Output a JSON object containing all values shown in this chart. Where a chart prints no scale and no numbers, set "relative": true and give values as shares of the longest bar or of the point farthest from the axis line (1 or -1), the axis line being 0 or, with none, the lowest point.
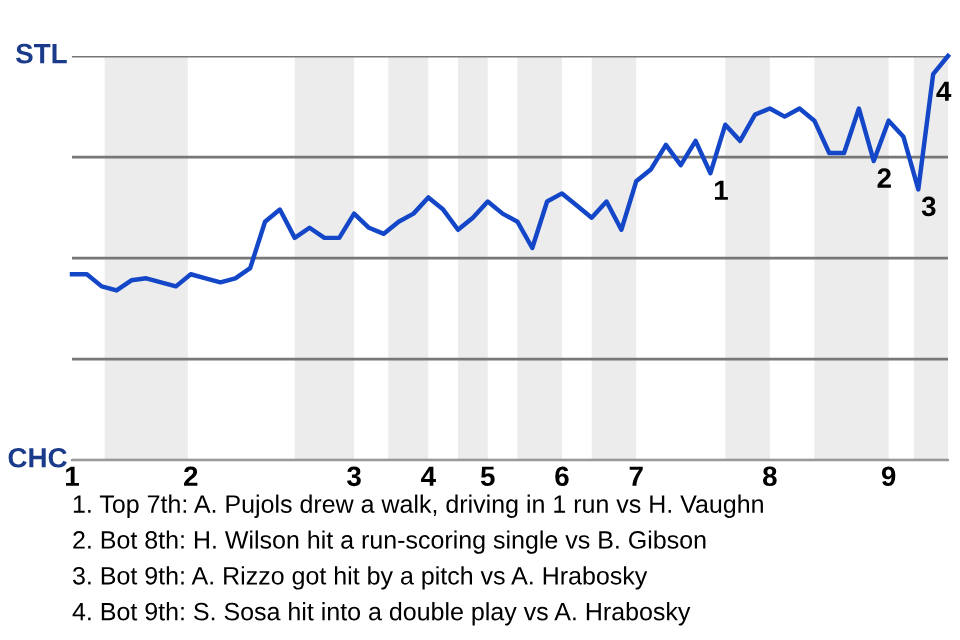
{
  "chart_data": {
    "type": "line",
    "relative": true,
    "categories": [
      "1",
      null,
      null,
      null,
      null,
      null,
      null,
      null,
      "2",
      null,
      null,
      null,
      null,
      null,
      null,
      null,
      null,
      null,
      null,
      "3",
      null,
      null,
      null,
      null,
      "4",
      null,
      null,
      null,
      "5",
      null,
      null,
      null,
      null,
      "6",
      null,
      null,
      null,
      null,
      "7",
      null,
      null,
      null,
      null,
      null,
      null,
      null,
      null,
      "8",
      null,
      null,
      null,
      null,
      null,
      null,
      null,
      "9",
      null,
      null,
      null,
      null
    ],
    "series": [
      {
        "color": "#1446c8",
        "values": [
          0.46,
          0.46,
          0.43,
          0.42,
          0.445,
          0.45,
          0.44,
          0.43,
          0.46,
          0.45,
          0.44,
          0.45,
          0.475,
          0.59,
          0.62,
          0.55,
          0.575,
          0.55,
          0.55,
          0.61,
          0.575,
          0.56,
          0.59,
          0.61,
          0.65,
          0.62,
          0.57,
          0.6,
          0.64,
          0.61,
          0.59,
          0.525,
          0.64,
          0.66,
          0.63,
          0.6,
          0.64,
          0.57,
          0.69,
          0.72,
          0.78,
          0.73,
          0.79,
          0.71,
          0.83,
          0.79,
          0.855,
          0.87,
          0.85,
          0.87,
          0.84,
          0.76,
          0.76,
          0.87,
          0.74,
          0.84,
          0.8,
          0.67,
          0.955,
          1
        ]
      }
    ],
    "grid": "y",
    "annotations": [
      {
        "text": "STL"
      },
      {
        "text": "CHC"
      },
      {
        "text": "1",
        "y": 0.71
      },
      {
        "text": "2",
        "y": 0.74
      },
      {
        "text": "3",
        "y": 0.67
      },
      {
        "text": "4",
        "y": 0.955
      },
      "1. Top 7th: A. Pujols drew a walk, driving in 1 run vs H. Vaughn",
      "2. Bot 8th: H. Wilson hit a run-scoring single vs B. Gibson",
      "3. Bot 9th: A. Rizzo got hit by a pitch vs A. Hrabosky",
      "4. Bot 9th: S. Sosa hit into a double play vs A. Hrabosky"
    ],
    "line_style": "solid",
    "marker": "none"
  }
}
